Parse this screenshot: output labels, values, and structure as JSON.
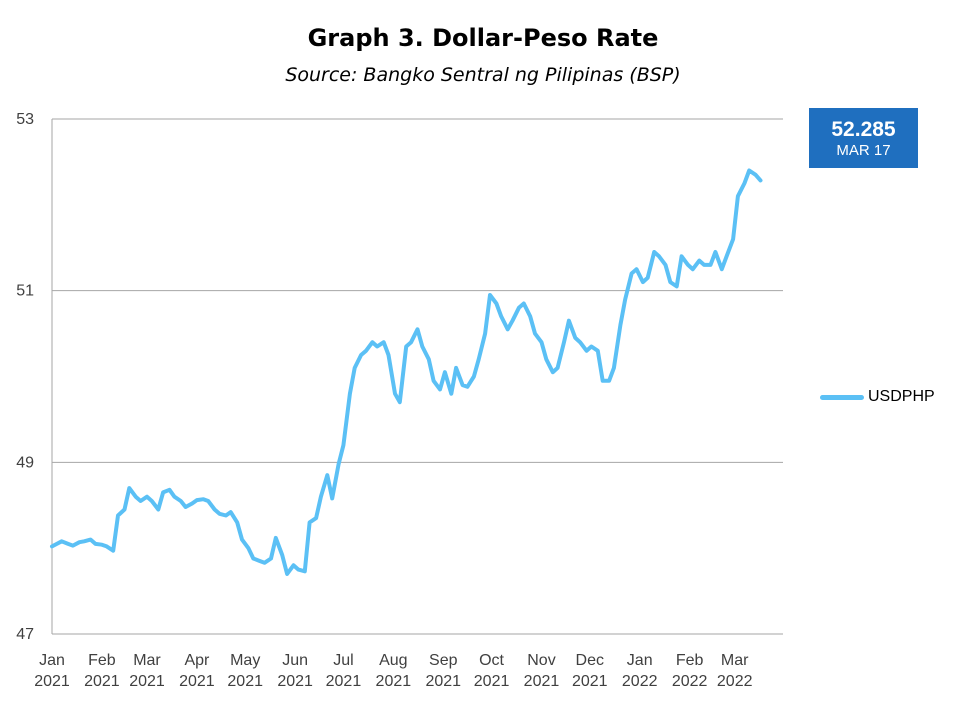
{
  "colors": {
    "line": "#5bc0f5",
    "badge": "#1f6fbf",
    "grid": "#a6a6a6"
  },
  "chart_data": {
    "type": "line",
    "title": "Graph 3. Dollar-Peso Rate",
    "subtitle": "Source: Bangko Sentral ng Pilipinas (BSP)",
    "ylim": [
      47,
      53
    ],
    "yticks": [
      47,
      49,
      51,
      53
    ],
    "xlim": [
      "2021-01-01",
      "2022-03-31"
    ],
    "xticks": [
      {
        "month": "Jan",
        "year": "2021",
        "date": "2021-01-01"
      },
      {
        "month": "Feb",
        "year": "2021",
        "date": "2021-02-01"
      },
      {
        "month": "Mar",
        "year": "2021",
        "date": "2021-03-01"
      },
      {
        "month": "Apr",
        "year": "2021",
        "date": "2021-04-01"
      },
      {
        "month": "May",
        "year": "2021",
        "date": "2021-05-01"
      },
      {
        "month": "Jun",
        "year": "2021",
        "date": "2021-06-01"
      },
      {
        "month": "Jul",
        "year": "2021",
        "date": "2021-07-01"
      },
      {
        "month": "Aug",
        "year": "2021",
        "date": "2021-08-01"
      },
      {
        "month": "Sep",
        "year": "2021",
        "date": "2021-09-01"
      },
      {
        "month": "Oct",
        "year": "2021",
        "date": "2021-10-01"
      },
      {
        "month": "Nov",
        "year": "2021",
        "date": "2021-11-01"
      },
      {
        "month": "Dec",
        "year": "2021",
        "date": "2021-12-01"
      },
      {
        "month": "Jan",
        "year": "2022",
        "date": "2022-01-01"
      },
      {
        "month": "Feb",
        "year": "2022",
        "date": "2022-02-01"
      },
      {
        "month": "Mar",
        "year": "2022",
        "date": "2022-03-01"
      }
    ],
    "grid": true,
    "legend_position": "right",
    "annotation": {
      "value": "52.285",
      "label": "MAR 17"
    },
    "series": [
      {
        "name": "USDPHP",
        "x": [
          "2021-01-01",
          "2021-01-04",
          "2021-01-07",
          "2021-01-11",
          "2021-01-14",
          "2021-01-18",
          "2021-01-21",
          "2021-01-25",
          "2021-01-28",
          "2021-02-01",
          "2021-02-04",
          "2021-02-08",
          "2021-02-11",
          "2021-02-15",
          "2021-02-18",
          "2021-02-22",
          "2021-02-25",
          "2021-03-01",
          "2021-03-04",
          "2021-03-08",
          "2021-03-11",
          "2021-03-15",
          "2021-03-18",
          "2021-03-22",
          "2021-03-25",
          "2021-03-29",
          "2021-04-01",
          "2021-04-05",
          "2021-04-08",
          "2021-04-12",
          "2021-04-15",
          "2021-04-19",
          "2021-04-22",
          "2021-04-26",
          "2021-04-29",
          "2021-05-03",
          "2021-05-06",
          "2021-05-10",
          "2021-05-13",
          "2021-05-17",
          "2021-05-20",
          "2021-05-24",
          "2021-05-27",
          "2021-05-31",
          "2021-06-03",
          "2021-06-07",
          "2021-06-10",
          "2021-06-14",
          "2021-06-17",
          "2021-06-21",
          "2021-06-24",
          "2021-06-28",
          "2021-07-01",
          "2021-07-05",
          "2021-07-08",
          "2021-07-12",
          "2021-07-15",
          "2021-07-19",
          "2021-07-22",
          "2021-07-26",
          "2021-07-29",
          "2021-08-02",
          "2021-08-05",
          "2021-08-09",
          "2021-08-12",
          "2021-08-16",
          "2021-08-19",
          "2021-08-23",
          "2021-08-26",
          "2021-08-30",
          "2021-09-02",
          "2021-09-06",
          "2021-09-09",
          "2021-09-13",
          "2021-09-16",
          "2021-09-20",
          "2021-09-23",
          "2021-09-27",
          "2021-09-30",
          "2021-10-04",
          "2021-10-07",
          "2021-10-11",
          "2021-10-14",
          "2021-10-18",
          "2021-10-21",
          "2021-10-25",
          "2021-10-28",
          "2021-11-01",
          "2021-11-04",
          "2021-11-08",
          "2021-11-11",
          "2021-11-15",
          "2021-11-18",
          "2021-11-22",
          "2021-11-25",
          "2021-11-29",
          "2021-12-02",
          "2021-12-06",
          "2021-12-09",
          "2021-12-13",
          "2021-12-16",
          "2021-12-20",
          "2021-12-23",
          "2021-12-27",
          "2021-12-30",
          "2022-01-03",
          "2022-01-06",
          "2022-01-10",
          "2022-01-13",
          "2022-01-17",
          "2022-01-20",
          "2022-01-24",
          "2022-01-27",
          "2022-01-31",
          "2022-02-03",
          "2022-02-07",
          "2022-02-10",
          "2022-02-14",
          "2022-02-17",
          "2022-02-21",
          "2022-02-24",
          "2022-02-28",
          "2022-03-03",
          "2022-03-07",
          "2022-03-10",
          "2022-03-14",
          "2022-03-17"
        ],
        "values": [
          48.02,
          48.05,
          48.08,
          48.05,
          48.03,
          48.07,
          48.08,
          48.1,
          48.05,
          48.04,
          48.02,
          47.97,
          48.38,
          48.45,
          48.7,
          48.6,
          48.55,
          48.6,
          48.55,
          48.45,
          48.65,
          48.68,
          48.6,
          48.55,
          48.48,
          48.52,
          48.56,
          48.57,
          48.55,
          48.45,
          48.4,
          48.38,
          48.42,
          48.3,
          48.1,
          48.0,
          47.88,
          47.85,
          47.83,
          47.88,
          48.12,
          47.92,
          47.7,
          47.8,
          47.75,
          47.73,
          48.3,
          48.35,
          48.6,
          48.85,
          48.58,
          48.98,
          49.2,
          49.8,
          50.1,
          50.25,
          50.3,
          50.4,
          50.35,
          50.4,
          50.25,
          49.8,
          49.7,
          50.35,
          50.4,
          50.55,
          50.35,
          50.2,
          49.95,
          49.85,
          50.05,
          49.8,
          50.1,
          49.9,
          49.88,
          50.0,
          50.2,
          50.5,
          50.95,
          50.85,
          50.7,
          50.55,
          50.65,
          50.8,
          50.85,
          50.7,
          50.5,
          50.4,
          50.2,
          50.05,
          50.1,
          50.4,
          50.65,
          50.45,
          50.4,
          50.3,
          50.35,
          50.3,
          49.95,
          49.95,
          50.1,
          50.6,
          50.9,
          51.2,
          51.25,
          51.1,
          51.15,
          51.45,
          51.4,
          51.3,
          51.1,
          51.05,
          51.4,
          51.3,
          51.25,
          51.35,
          51.3,
          51.3,
          51.45,
          51.25,
          51.4,
          51.6,
          52.1,
          52.25,
          52.4,
          52.35,
          52.285
        ]
      }
    ]
  }
}
